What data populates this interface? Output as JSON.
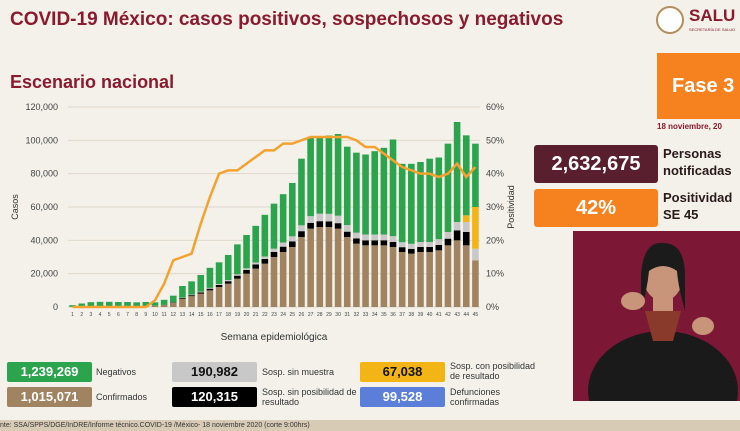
{
  "header": {
    "title": "COVID-19 México: casos positivos, sospechosos y negativos",
    "logo_text": "SALU",
    "logo_sub": "SECRETARÍA DE SALUD"
  },
  "subtitle": "Escenario nacional",
  "fase": {
    "label": "Fase 3",
    "date": "18 noviembre, 20"
  },
  "stats": {
    "notificadas": {
      "value": "2,632,675",
      "label_line1": "Personas",
      "label_line2": "notificadas"
    },
    "positividad": {
      "value": "42%",
      "label_line1": "Positividad",
      "label_line2": "SE 45"
    }
  },
  "legend": [
    {
      "value": "1,239,269",
      "label": "Negativos",
      "color": "#2ca44e",
      "text_color": "#ffffff"
    },
    {
      "value": "190,982",
      "label": "Sosp. sin muestra",
      "color": "#c8c8c8",
      "text_color": "#111111"
    },
    {
      "value": "67,038",
      "label": "Sosp. con posibilidad de resultado",
      "color": "#f3b516",
      "text_color": "#111111"
    },
    {
      "value": "1,015,071",
      "label": "Confirmados",
      "color": "#a08462",
      "text_color": "#ffffff"
    },
    {
      "value": "120,315",
      "label": "Sosp. sin posibilidad de resultado",
      "color": "#000000",
      "text_color": "#ffffff"
    },
    {
      "value": "99,528",
      "label": "Defunciones confirmadas",
      "color": "#5b7fd9",
      "text_color": "#ffffff"
    }
  ],
  "footer": "nte: SSA/SPPS/DGE/InDRE/Informe técnico.COVID-19 /México- 18 noviembre 2020 (corte 9:00hrs)",
  "colors": {
    "brand": "#8a1a2e",
    "orange": "#f5821f",
    "dark": "#5a1f2e"
  },
  "chart_data": {
    "type": "bar",
    "stacked": true,
    "xlabel": "Semana epidemiológica",
    "ylabel": "Casos",
    "y2label": "Positividad",
    "ylim": [
      0,
      120000
    ],
    "y2lim": [
      0,
      60
    ],
    "yticks": [
      "0",
      "20,000",
      "40,000",
      "60,000",
      "80,000",
      "100,000",
      "120,000"
    ],
    "y2ticks": [
      "0%",
      "10%",
      "20%",
      "30%",
      "40%",
      "50%",
      "60%"
    ],
    "categories": [
      "1",
      "2",
      "3",
      "4",
      "5",
      "6",
      "7",
      "8",
      "9",
      "10",
      "11",
      "12",
      "13",
      "14",
      "15",
      "16",
      "17",
      "18",
      "19",
      "20",
      "21",
      "22",
      "23",
      "24",
      "25",
      "26",
      "27",
      "28",
      "29",
      "30",
      "31",
      "32",
      "33",
      "34",
      "35",
      "36",
      "37",
      "38",
      "39",
      "40",
      "41",
      "42",
      "43",
      "44",
      "45"
    ],
    "series": [
      {
        "name": "Confirmados",
        "color": "#a08462",
        "values": [
          100,
          100,
          100,
          100,
          100,
          200,
          200,
          300,
          500,
          800,
          1200,
          2500,
          5000,
          6500,
          8000,
          10000,
          12000,
          14000,
          17000,
          20000,
          23000,
          26000,
          30000,
          33000,
          36000,
          42000,
          47000,
          48000,
          48000,
          47000,
          42000,
          38000,
          37000,
          37000,
          37000,
          36000,
          33000,
          32000,
          33000,
          33000,
          34000,
          37000,
          40000,
          37000,
          28000
        ]
      },
      {
        "name": "Sosp. sin posibilidad de resultado",
        "color": "#000000",
        "values": [
          0,
          0,
          0,
          0,
          0,
          0,
          0,
          0,
          0,
          0,
          100,
          200,
          400,
          600,
          800,
          1000,
          1200,
          1500,
          1800,
          2200,
          2500,
          2800,
          3000,
          3200,
          3400,
          3500,
          3500,
          3500,
          3400,
          3300,
          3200,
          3100,
          3000,
          3000,
          3000,
          3000,
          2900,
          2900,
          3000,
          3000,
          3200,
          4000,
          6000,
          8000,
          0
        ]
      },
      {
        "name": "Sosp. sin muestra",
        "color": "#c8c8c8",
        "values": [
          0,
          0,
          0,
          0,
          0,
          0,
          0,
          0,
          0,
          0,
          0,
          100,
          200,
          300,
          400,
          500,
          600,
          700,
          800,
          1000,
          1200,
          1500,
          2000,
          2500,
          3000,
          3500,
          4000,
          4500,
          4500,
          4500,
          4000,
          3500,
          3500,
          3500,
          3500,
          3500,
          3000,
          3000,
          3000,
          3000,
          3500,
          4000,
          5000,
          6000,
          7000
        ]
      },
      {
        "name": "Sosp. con posibilidad de resultado",
        "color": "#f3b516",
        "values": [
          0,
          0,
          0,
          0,
          0,
          0,
          0,
          0,
          0,
          0,
          0,
          0,
          0,
          0,
          0,
          0,
          0,
          0,
          0,
          0,
          0,
          0,
          0,
          0,
          0,
          0,
          0,
          0,
          0,
          0,
          0,
          0,
          0,
          0,
          0,
          0,
          0,
          0,
          0,
          0,
          0,
          0,
          0,
          4000,
          25000
        ]
      },
      {
        "name": "Negativos",
        "color": "#2ca44e",
        "values": [
          1000,
          2000,
          2800,
          3000,
          3000,
          2800,
          2800,
          2500,
          2500,
          2000,
          3000,
          4000,
          7000,
          8000,
          10000,
          12000,
          13000,
          15000,
          18000,
          20000,
          22000,
          25000,
          27000,
          29000,
          32000,
          40000,
          47000,
          46000,
          47000,
          49000,
          47000,
          48000,
          48000,
          50000,
          52000,
          58000,
          47000,
          48000,
          48000,
          50000,
          49000,
          53000,
          60000,
          48000,
          38000
        ]
      }
    ],
    "line": {
      "name": "Positividad",
      "color": "#f3a22f",
      "values": [
        0,
        0,
        0,
        0,
        0,
        0,
        0,
        0,
        0,
        2,
        7,
        14,
        15,
        16,
        25,
        33,
        40,
        41,
        41,
        43,
        45,
        47,
        47,
        49,
        49,
        50,
        51,
        51,
        51,
        51,
        51,
        50,
        48,
        48,
        46,
        44,
        42,
        41,
        40,
        40,
        39,
        40,
        43,
        39,
        42
      ]
    }
  }
}
